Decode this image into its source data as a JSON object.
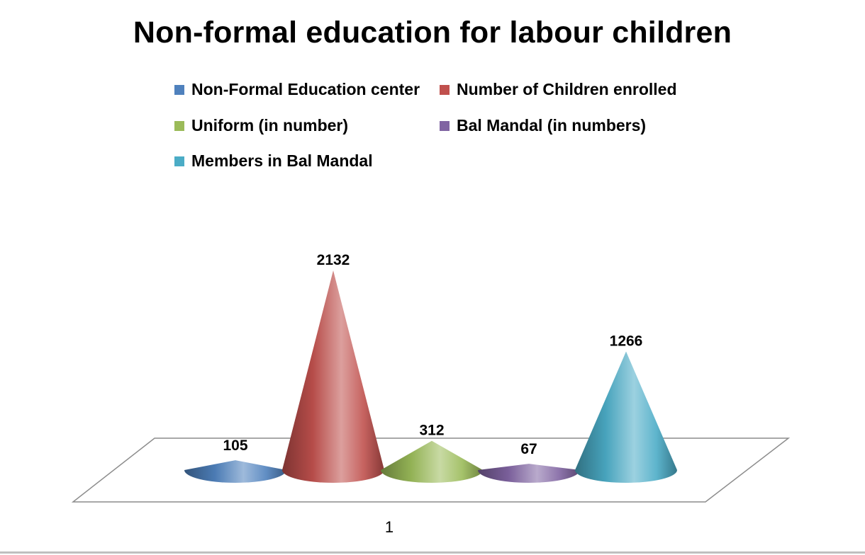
{
  "chart_data": {
    "type": "bar",
    "shape": "cone",
    "title": "Non-formal education for labour children",
    "categories": [
      "1"
    ],
    "series": [
      {
        "name": "Non-Formal Education center",
        "values": [
          105
        ],
        "color": "#4f81bd"
      },
      {
        "name": "Number of Children enrolled",
        "values": [
          2132
        ],
        "color": "#c0504d"
      },
      {
        "name": "Uniform (in number)",
        "values": [
          312
        ],
        "color": "#9bbb59"
      },
      {
        "name": "Bal Mandal (in numbers)",
        "values": [
          67
        ],
        "color": "#8064a2"
      },
      {
        "name": "Members in Bal Mandal",
        "values": [
          1266
        ],
        "color": "#4bacc6"
      }
    ],
    "legend_position": "top",
    "grid": false
  }
}
